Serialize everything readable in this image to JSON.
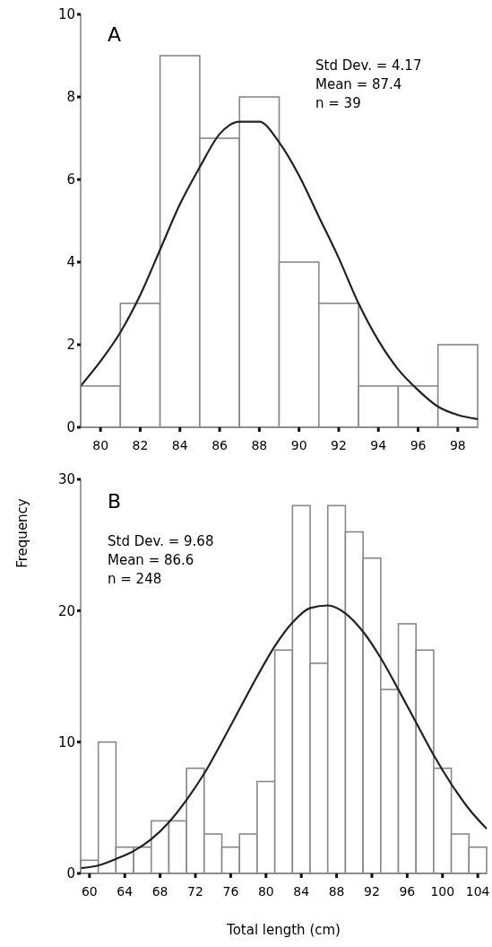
{
  "chart_data": [
    {
      "type": "histogram",
      "title": "A",
      "bins": [
        79,
        81,
        83,
        85,
        87,
        89,
        91,
        93,
        95,
        97,
        99
      ],
      "values": [
        1,
        3,
        9,
        7,
        8,
        4,
        3,
        1,
        1,
        2
      ],
      "color": "#ffffff",
      "xlim": [
        79,
        99
      ],
      "xticks": [
        80,
        82,
        84,
        86,
        88,
        90,
        92,
        94,
        96,
        98
      ],
      "ylim": [
        0,
        10
      ],
      "yticks": [
        0,
        2,
        4,
        6,
        8,
        10
      ],
      "annotations": [
        "Std Dev. = 4.17",
        "Mean = 87.4",
        "n = 39"
      ],
      "series": [
        {
          "type": "line",
          "color": "#222222",
          "x": [
            79,
            80,
            81,
            82,
            83,
            84,
            85,
            86,
            87,
            88,
            89,
            90,
            91,
            92,
            93,
            94,
            95,
            96,
            97,
            98,
            99
          ],
          "values": [
            1.0,
            1.6,
            2.3,
            3.2,
            4.3,
            5.4,
            6.3,
            7.1,
            7.4,
            7.4,
            6.9,
            6.1,
            5.1,
            4.1,
            3.0,
            2.1,
            1.4,
            0.9,
            0.5,
            0.3,
            0.2
          ]
        }
      ]
    },
    {
      "type": "histogram",
      "title": "B",
      "xlabel": "Total length (cm)",
      "ylabel": "Frequency",
      "bins": [
        59,
        61,
        63,
        65,
        67,
        69,
        71,
        73,
        75,
        77,
        79,
        81,
        83,
        85,
        87,
        89,
        91,
        93,
        95,
        97,
        99,
        101,
        103,
        105
      ],
      "values": [
        1,
        10,
        2,
        2,
        4,
        4,
        8,
        3,
        2,
        3,
        7,
        17,
        28,
        16,
        28,
        26,
        24,
        14,
        19,
        17,
        8,
        3,
        2
      ],
      "color": "#ffffff",
      "xlim": [
        59,
        105
      ],
      "xticks": [
        60,
        64,
        68,
        72,
        76,
        80,
        84,
        88,
        92,
        96,
        100,
        104
      ],
      "ylim": [
        0,
        30
      ],
      "yticks": [
        0,
        10,
        20,
        30
      ],
      "annotations": [
        "Std Dev. = 9.68",
        "Mean = 86.6",
        "n = 248"
      ],
      "series": [
        {
          "type": "line",
          "color": "#222222",
          "x": [
            59,
            61,
            63,
            65,
            67,
            69,
            71,
            73,
            75,
            77,
            79,
            81,
            83,
            85,
            87,
            89,
            91,
            93,
            95,
            97,
            99,
            101,
            103,
            105
          ],
          "values": [
            0.4,
            0.6,
            1.1,
            1.7,
            2.6,
            3.9,
            5.6,
            7.6,
            10.0,
            12.5,
            15.0,
            17.3,
            19.1,
            20.2,
            20.4,
            19.8,
            18.4,
            16.4,
            14.0,
            11.5,
            9.0,
            6.8,
            4.9,
            3.4
          ]
        }
      ]
    }
  ]
}
